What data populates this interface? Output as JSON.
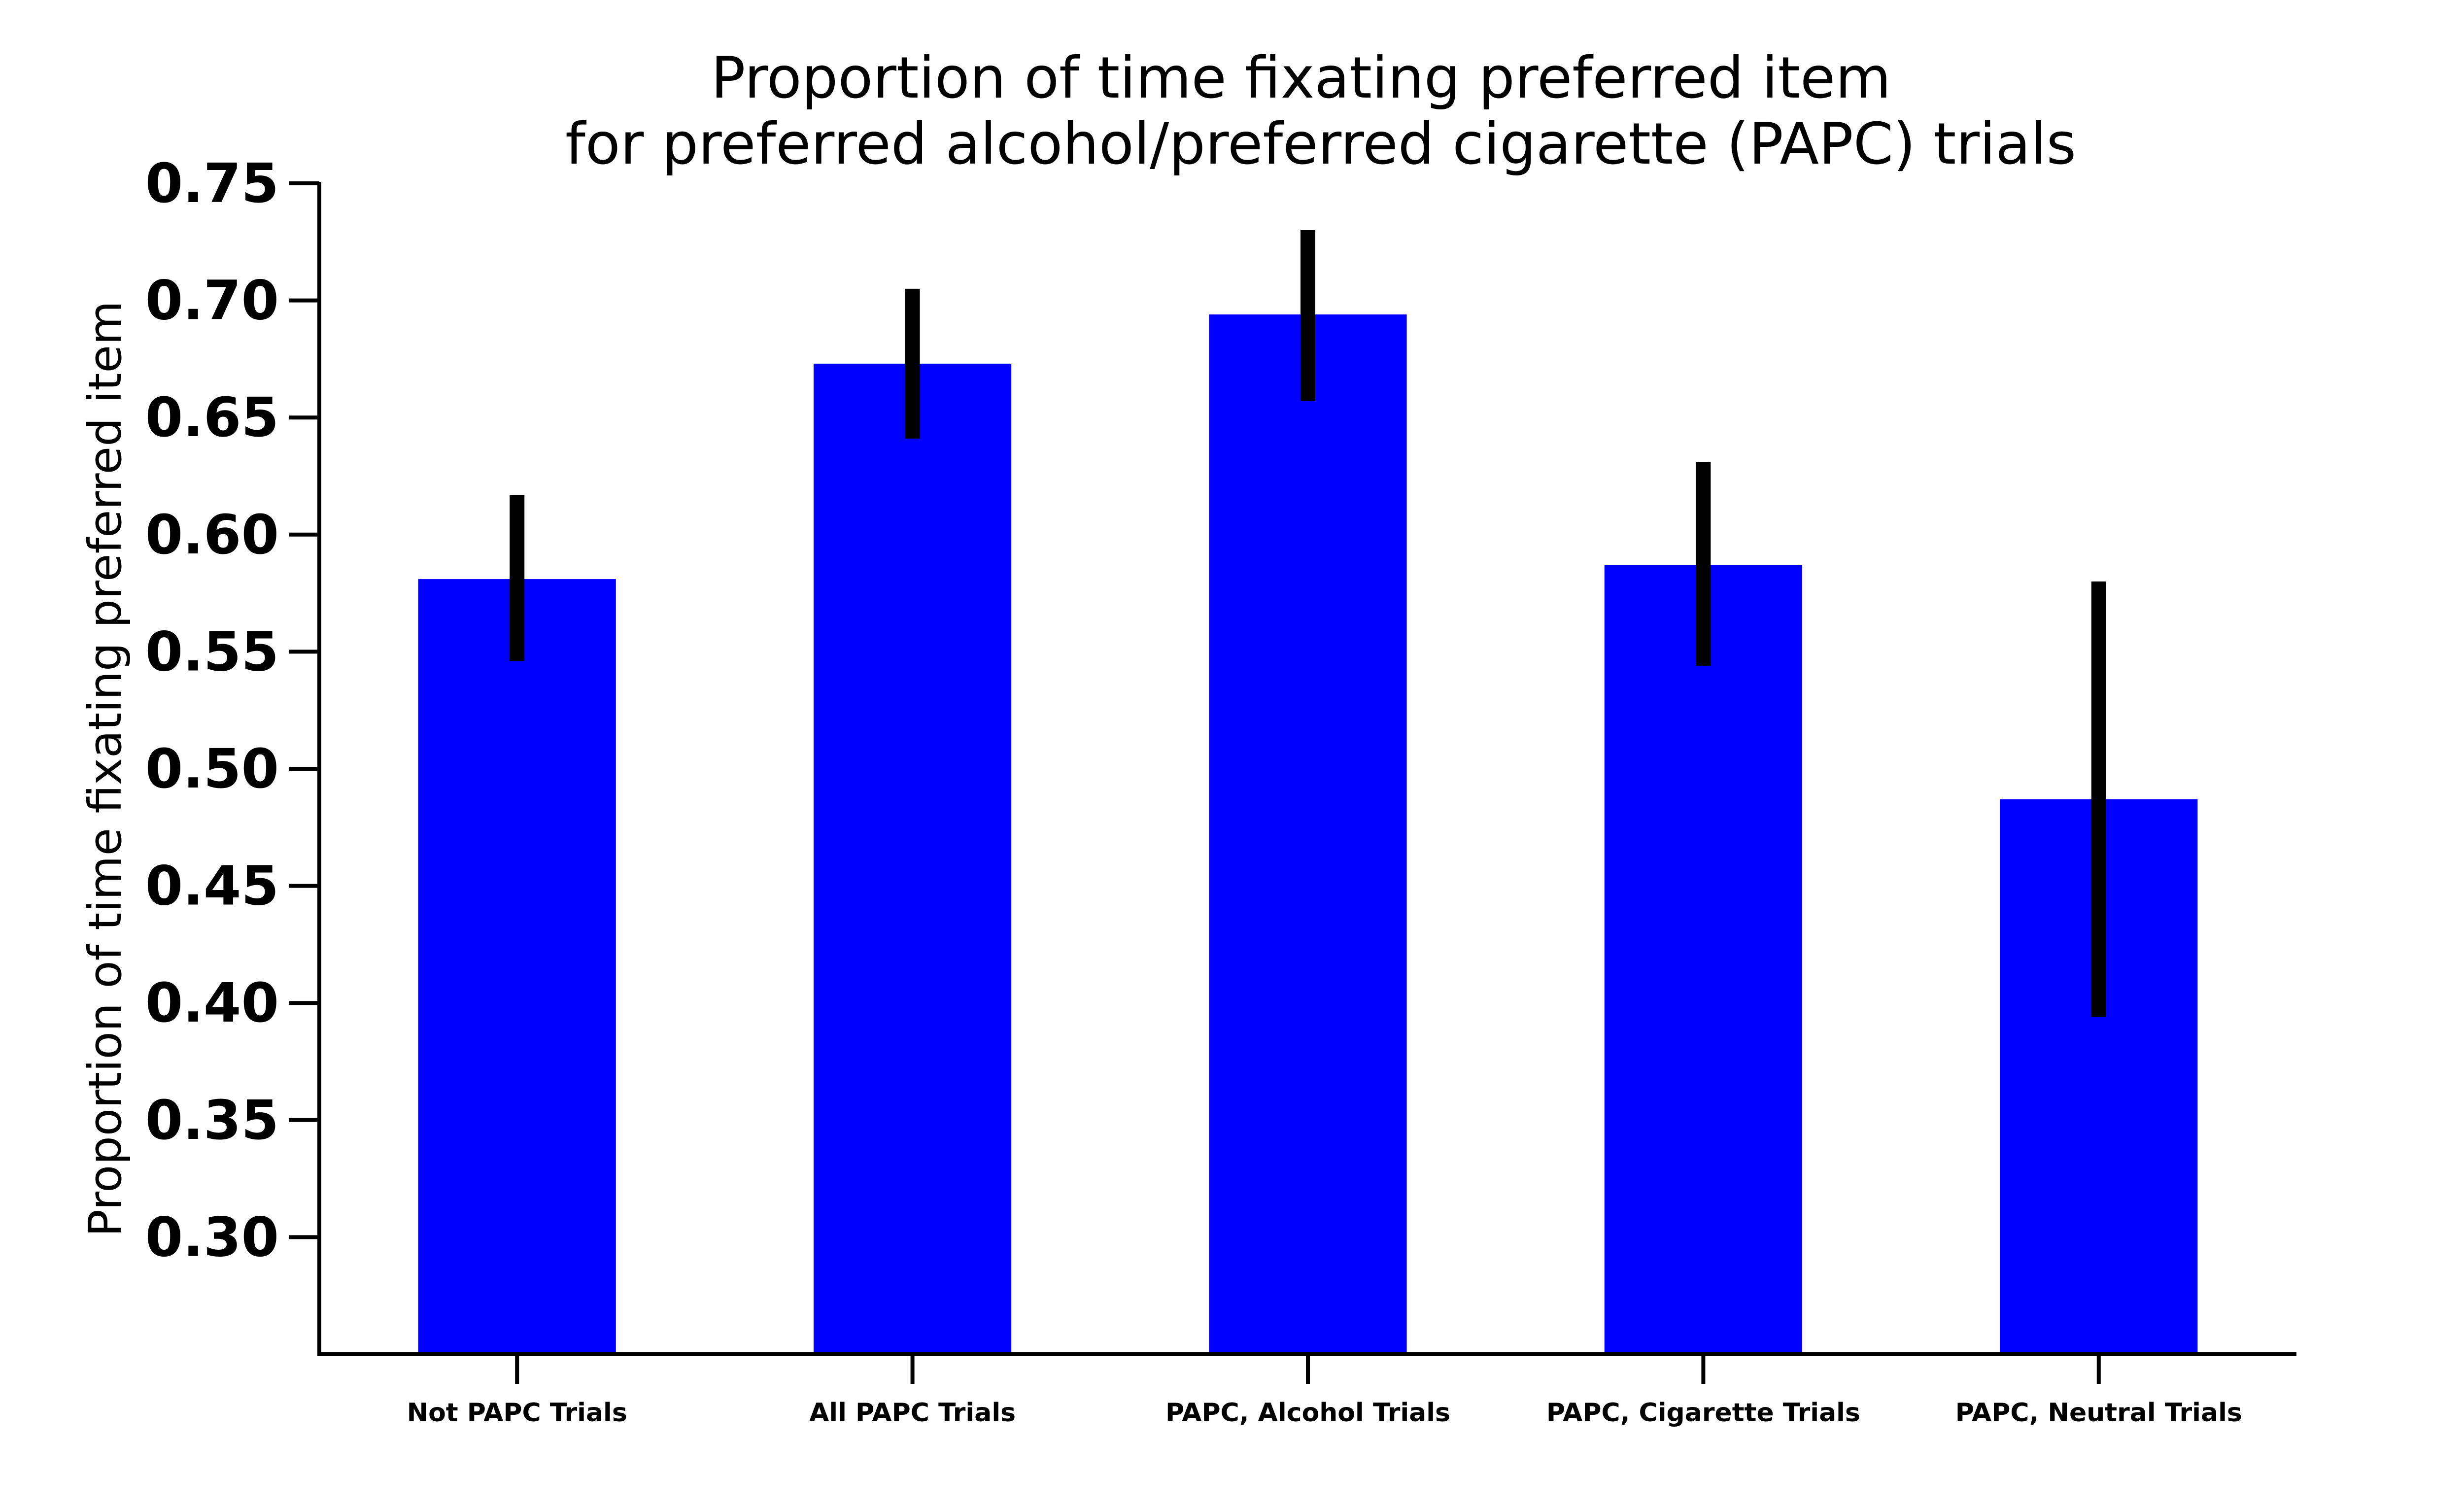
{
  "chart_data": {
    "type": "bar",
    "title": "Proportion of time fixating preferred item\nfor preferred alcohol/preferred cigarette (PAPC) trials",
    "title_lines": [
      "Proportion of time fixating preferred item",
      "for preferred alcohol/preferred cigarette (PAPC) trials"
    ],
    "xlabel": "",
    "ylabel": "Proportion of time fixating preferred item",
    "categories": [
      "Not PAPC Trials",
      "All PAPC Trials",
      "PAPC, Alcohol Trials",
      "PAPC, Cigarette Trials",
      "PAPC, Neutral Trials"
    ],
    "values": [
      0.581,
      0.673,
      0.694,
      0.587,
      0.487
    ],
    "error_low": [
      0.546,
      0.641,
      0.657,
      0.544,
      0.394
    ],
    "error_high": [
      0.617,
      0.705,
      0.73,
      0.631,
      0.58
    ],
    "ylim": [
      0.25,
      0.75
    ],
    "yticks": [
      0.3,
      0.35,
      0.4,
      0.45,
      0.5,
      0.55,
      0.6,
      0.65,
      0.7,
      0.75
    ],
    "ytick_labels": [
      "0.30",
      "0.35",
      "0.40",
      "0.45",
      "0.50",
      "0.55",
      "0.60",
      "0.65",
      "0.70",
      "0.75"
    ],
    "bar_color": "#0000ff",
    "error_color": "#000000",
    "grid": false,
    "legend": "none"
  }
}
